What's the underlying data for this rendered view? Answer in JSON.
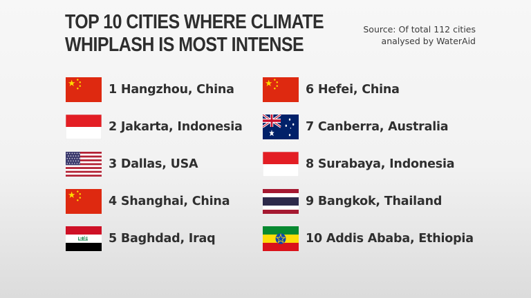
{
  "header": {
    "title_line1": "TOP 10 CITIES WHERE CLIMATE",
    "title_line2": "WHIPLASH IS MOST INTENSE",
    "source_line1": "Source: Of total 112 cities",
    "source_line2": "analysed by WaterAid"
  },
  "cities": [
    {
      "label": "1 Hangzhou, China",
      "flag": "china-flag-icon"
    },
    {
      "label": "2 Jakarta, Indonesia",
      "flag": "indonesia-flag-icon"
    },
    {
      "label": "3 Dallas, USA",
      "flag": "usa-flag-icon"
    },
    {
      "label": "4 Shanghai, China",
      "flag": "china-flag-icon"
    },
    {
      "label": "5 Baghdad, Iraq",
      "flag": "iraq-flag-icon"
    },
    {
      "label": "6 Hefei, China",
      "flag": "china-flag-icon"
    },
    {
      "label": "7 Canberra, Australia",
      "flag": "australia-flag-icon"
    },
    {
      "label": "8 Surabaya, Indonesia",
      "flag": "indonesia-flag-icon"
    },
    {
      "label": "9 Bangkok, Thailand",
      "flag": "thailand-flag-icon"
    },
    {
      "label": "10 Addis Ababa, Ethiopia",
      "flag": "ethiopia-flag-icon"
    }
  ],
  "colors": {
    "china_red": "#de2910",
    "china_yellow": "#ffde00",
    "indonesia_red": "#e31e24",
    "usa_red": "#b22234",
    "usa_blue": "#3c3b6e",
    "iraq_red": "#ce1126",
    "iraq_green": "#007a3d",
    "australia_blue": "#012169",
    "thailand_red": "#a51931",
    "thailand_blue": "#2d2a4a",
    "ethiopia_green": "#078930",
    "ethiopia_yellow": "#fcdd09",
    "ethiopia_red": "#da121a",
    "ethiopia_blue": "#0f47af"
  }
}
